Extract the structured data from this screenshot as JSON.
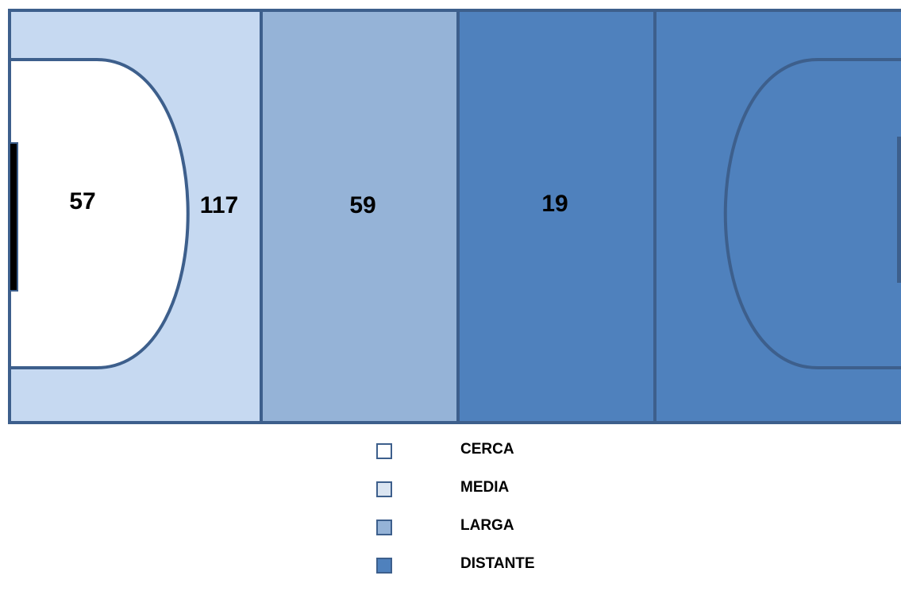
{
  "zones": [
    {
      "key": "cerca",
      "value": "57",
      "color": "#ffffff"
    },
    {
      "key": "media",
      "value": "117",
      "color": "#c6d9f1"
    },
    {
      "key": "larga",
      "value": "59",
      "color": "#95b3d7"
    },
    {
      "key": "distante",
      "value": "19",
      "color": "#4f81bd"
    }
  ],
  "line_color": "#3d5f8c",
  "legend": [
    {
      "label": "CERCA",
      "color": "#ffffff"
    },
    {
      "label": "MEDIA",
      "color": "#dbe5f1"
    },
    {
      "label": "LARGA",
      "color": "#95b3d7"
    },
    {
      "label": "DISTANTE",
      "color": "#4f81bd"
    }
  ]
}
